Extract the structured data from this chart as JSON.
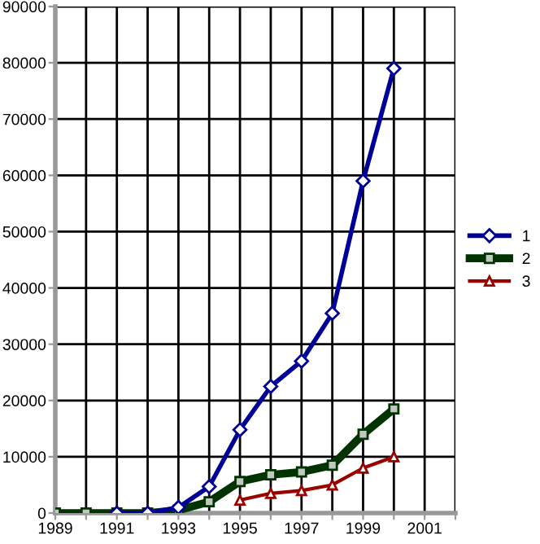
{
  "chart_data": {
    "type": "line",
    "x": [
      1989,
      1990,
      1991,
      1992,
      1993,
      1994,
      1995,
      1996,
      1997,
      1998,
      1999,
      2000
    ],
    "series": [
      {
        "name": "1",
        "color": "#000099",
        "marker": "diamond",
        "values": [
          null,
          null,
          0,
          0,
          1000,
          4700,
          14800,
          22500,
          27000,
          35500,
          59000,
          79000
        ]
      },
      {
        "name": "2",
        "color": "#003300",
        "marker": "square",
        "values": [
          0,
          0,
          0,
          0,
          500,
          2000,
          5600,
          6800,
          7300,
          8500,
          14000,
          18500
        ]
      },
      {
        "name": "3",
        "color": "#990000",
        "marker": "triangle",
        "values": [
          null,
          null,
          null,
          null,
          null,
          null,
          2300,
          3500,
          4000,
          5000,
          8000,
          10000
        ]
      }
    ],
    "xlim": [
      1989,
      2002
    ],
    "xticks": [
      1989,
      {
        "value": 1990,
        "label": null
      },
      1991,
      {
        "value": 1992,
        "label": null
      },
      1993,
      {
        "value": 1994,
        "label": null
      },
      1995,
      {
        "value": 1996,
        "label": null
      },
      1997,
      {
        "value": 1998,
        "label": null
      },
      1999,
      {
        "value": 2000,
        "label": null
      },
      2001,
      {
        "value": 2002,
        "label": null
      }
    ],
    "ylim": [
      0,
      90000
    ],
    "yticks": [
      0,
      10000,
      20000,
      30000,
      40000,
      50000,
      60000,
      70000,
      80000,
      90000
    ],
    "grid": true,
    "legend": "right"
  }
}
